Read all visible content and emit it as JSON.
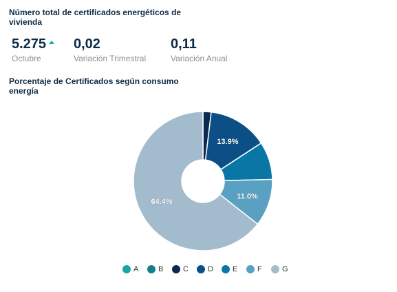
{
  "header": {
    "title": "Número total de certificados energéticos de vivienda"
  },
  "kpis": [
    {
      "value": "5.275",
      "label": "Octubre",
      "trend": "up"
    },
    {
      "value": "0,02",
      "label": "Variación Trimestral"
    },
    {
      "value": "0,11",
      "label": "Variación Anual"
    }
  ],
  "colors": {
    "A": "#1aa6a6",
    "B": "#157f91",
    "C": "#0a2a52",
    "D": "#0b4f86",
    "E": "#0a76a5",
    "F": "#5aa0c2",
    "G": "#a3bccd",
    "trend_up": "#1aa6a6"
  },
  "chart_data": {
    "type": "pie",
    "donut": true,
    "title": "Porcentaje de Certificados según consumo energía",
    "categories": [
      "A",
      "B",
      "C",
      "D",
      "E",
      "F",
      "G"
    ],
    "values": [
      0.0,
      0.0,
      1.9,
      13.9,
      8.8,
      11.0,
      64.4
    ],
    "data_labels": [
      "",
      "",
      "",
      "13.9%",
      "",
      "11.0%",
      "64.4%"
    ],
    "legend": "bottom"
  }
}
